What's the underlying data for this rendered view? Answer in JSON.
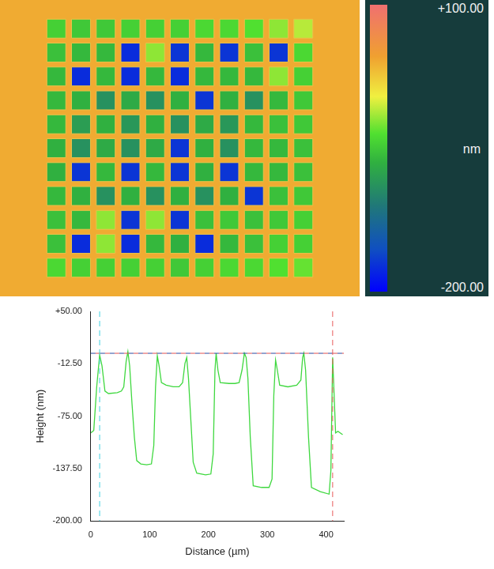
{
  "chart_data": [
    {
      "type": "heatmap",
      "cells": [
        [
          -45,
          -50,
          -50,
          -45,
          -45,
          -45,
          -40,
          -40,
          -35,
          -20,
          -10
        ],
        [
          -55,
          -60,
          -60,
          -175,
          -20,
          -170,
          -60,
          -170,
          -55,
          -170,
          -40
        ],
        [
          -60,
          -175,
          -60,
          -175,
          -60,
          -175,
          -60,
          -60,
          -60,
          -20,
          -45
        ],
        [
          -60,
          -65,
          -90,
          -70,
          -90,
          -65,
          -170,
          -65,
          -90,
          -60,
          -50
        ],
        [
          -60,
          -80,
          -65,
          -85,
          -65,
          -90,
          -70,
          -85,
          -60,
          -55,
          -50
        ],
        [
          -65,
          -90,
          -70,
          -90,
          -70,
          -170,
          -65,
          -90,
          -60,
          -60,
          -55
        ],
        [
          -65,
          -170,
          -60,
          -170,
          -60,
          -170,
          -65,
          -170,
          -60,
          -60,
          -55
        ],
        [
          -60,
          -65,
          -90,
          -65,
          -90,
          -65,
          -90,
          -65,
          -170,
          -55,
          -50
        ],
        [
          -55,
          -60,
          -20,
          -170,
          -20,
          -170,
          -55,
          -50,
          -55,
          -50,
          -45
        ],
        [
          -55,
          -175,
          -20,
          -175,
          -60,
          -65,
          -175,
          -60,
          -55,
          -45,
          -45
        ],
        [
          -40,
          -45,
          -45,
          -45,
          -45,
          -50,
          -45,
          -40,
          -40,
          -35,
          -30
        ]
      ],
      "background": 40,
      "colorbar": {
        "range": [
          -200,
          100
        ],
        "ticks": [
          {
            "value": 100,
            "label": "+100.00"
          },
          {
            "value": -200,
            "label": "-200.00"
          }
        ],
        "label": "nm"
      }
    },
    {
      "type": "line",
      "x": [
        0,
        5,
        10,
        15,
        19,
        24,
        30,
        45,
        52,
        56,
        60,
        63,
        66,
        70,
        74,
        78,
        85,
        95,
        103,
        107,
        110,
        113,
        116,
        120,
        128,
        140,
        150,
        156,
        160,
        163,
        166,
        170,
        174,
        180,
        195,
        204,
        208,
        211,
        213,
        216,
        220,
        235,
        245,
        252,
        257,
        261,
        264,
        267,
        271,
        276,
        290,
        303,
        308,
        311,
        314,
        317,
        321,
        335,
        350,
        357,
        360,
        362,
        365,
        370,
        375,
        390,
        405,
        408,
        411,
        413,
        416,
        420,
        428
      ],
      "values": [
        -95,
        -92,
        -40,
        -2,
        -15,
        -45,
        -48,
        -47,
        -45,
        -40,
        -10,
        2,
        -15,
        -60,
        -100,
        -128,
        -132,
        -133,
        -132,
        -110,
        -40,
        -3,
        -15,
        -35,
        -38,
        -40,
        -40,
        -35,
        -12,
        -5,
        -30,
        -80,
        -130,
        -143,
        -145,
        -144,
        -120,
        -20,
        0,
        -20,
        -35,
        -36,
        -36,
        -35,
        -20,
        0,
        -5,
        -30,
        -100,
        -158,
        -160,
        -160,
        -150,
        -50,
        -8,
        -20,
        -38,
        -40,
        -38,
        -32,
        -5,
        0,
        -20,
        -100,
        -160,
        -165,
        -168,
        -140,
        -5,
        -40,
        -95,
        -93,
        -97
      ],
      "color": "#3fd83f",
      "xlim": [
        0,
        430
      ],
      "ylim": [
        -200,
        50
      ],
      "xticks": [
        0,
        100,
        200,
        300,
        400
      ],
      "yticks": [
        {
          "value": -200,
          "label": "-200.00"
        },
        {
          "value": -137.5,
          "label": "-137.50"
        },
        {
          "value": -75,
          "label": "-75.00"
        },
        {
          "value": -12.5,
          "label": "-12.50"
        },
        {
          "value": 50,
          "label": "+50.00"
        }
      ],
      "x_label": "Distance (µm)",
      "y_label": "Height (nm)",
      "grid": false,
      "cursors": {
        "x": [
          15,
          411
        ],
        "y": 0
      }
    }
  ]
}
